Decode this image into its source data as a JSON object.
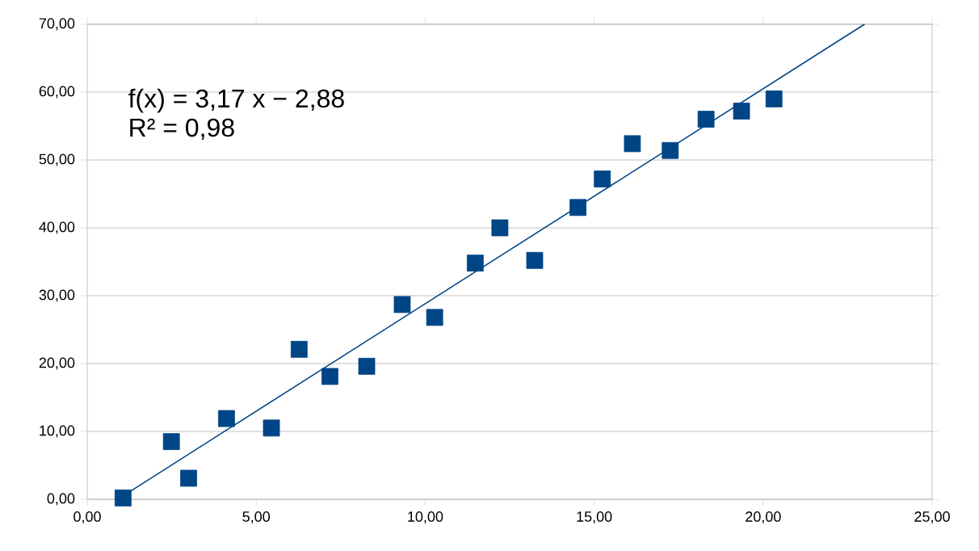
{
  "chart_data": {
    "type": "scatter",
    "xlim": [
      0,
      25
    ],
    "ylim": [
      0,
      70
    ],
    "xticks": [
      {
        "value": 0,
        "label": "0,00"
      },
      {
        "value": 5,
        "label": "5,00"
      },
      {
        "value": 10,
        "label": "10,00"
      },
      {
        "value": 15,
        "label": "15,00"
      },
      {
        "value": 20,
        "label": "20,00"
      },
      {
        "value": 25,
        "label": "25,00"
      }
    ],
    "yticks": [
      {
        "value": 0,
        "label": "0,00"
      },
      {
        "value": 10,
        "label": "10,00"
      },
      {
        "value": 20,
        "label": "20,00"
      },
      {
        "value": 30,
        "label": "30,00"
      },
      {
        "value": 40,
        "label": "40,00"
      },
      {
        "value": 50,
        "label": "50,00"
      },
      {
        "value": 60,
        "label": "60,00"
      },
      {
        "value": 70,
        "label": "70,00"
      }
    ],
    "grid": "y",
    "marker": "square",
    "series": [
      {
        "color": "#004586",
        "x": [
          1.06,
          2.49,
          3.0,
          4.12,
          5.45,
          6.27,
          7.18,
          8.27,
          9.32,
          10.28,
          11.48,
          12.21,
          13.24,
          14.52,
          15.24,
          16.13,
          17.25,
          18.31,
          19.36,
          20.32
        ],
        "values": [
          0.2,
          8.5,
          3.1,
          11.9,
          10.5,
          22.1,
          18.1,
          19.6,
          28.7,
          26.8,
          34.8,
          40.0,
          35.2,
          43.0,
          47.2,
          52.4,
          51.4,
          56.0,
          57.2,
          59.0
        ]
      },
      {
        "type": "line",
        "color": "#004586",
        "marker": "none",
        "line_style": "solid",
        "x": [
          1.06,
          23.0
        ],
        "values": [
          0.5,
          70.0
        ]
      }
    ],
    "annotations": [
      "f(x) = 3,17 x − 2,88",
      "R² = 0,98"
    ]
  }
}
